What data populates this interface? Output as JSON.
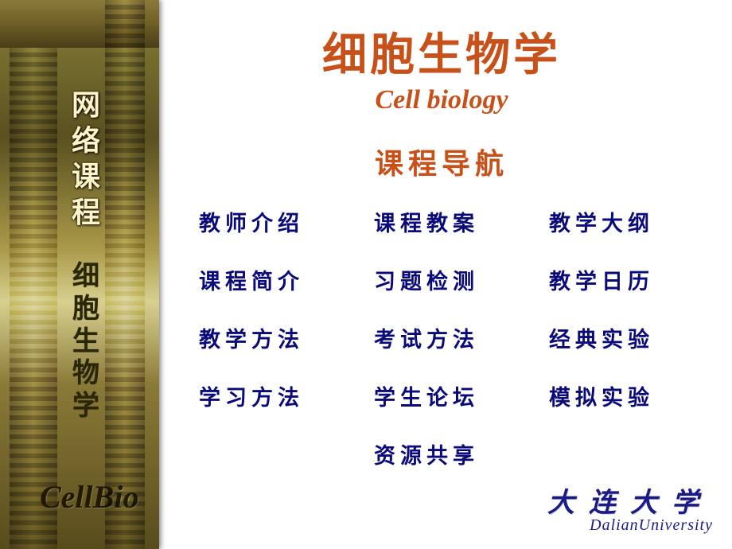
{
  "colors": {
    "accent_orange": "#c8511a",
    "link_blue": "#0a0a7a",
    "uni_blue": "#1a1a88",
    "sidebar_cream": "#fff4c8",
    "sidebar_dark": "#2a2608",
    "background": "#ffffff"
  },
  "typography": {
    "title_cn_fontsize": 56,
    "title_en_fontsize": 34,
    "section_fontsize": 36,
    "nav_fontsize": 27,
    "footer_cn_fontsize": 34,
    "footer_en_fontsize": 20,
    "sidebar_title_fontsize": 36,
    "sidebar_subtitle_fontsize": 34,
    "sidebar_brand_fontsize": 40
  },
  "sidebar": {
    "title_vertical": "网\n络\n课\n程",
    "subtitle_vertical": "细\n胞\n生\n物\n学",
    "brand": "CellBio"
  },
  "header": {
    "title_cn": "细胞生物学",
    "title_en": "Cell biology",
    "section": "课程导航"
  },
  "nav": {
    "items": [
      "教师介绍",
      "课程教案",
      "教学大纲",
      "课程简介",
      "习题检测",
      "教学日历",
      "教学方法",
      "考试方法",
      "经典实验",
      "学习方法",
      "学生论坛",
      "模拟实验"
    ],
    "last": "资源共享",
    "grid": {
      "cols": 3,
      "rows": 5
    }
  },
  "footer": {
    "uni_cn": "大连大学",
    "uni_en": "DalianUniversity"
  }
}
